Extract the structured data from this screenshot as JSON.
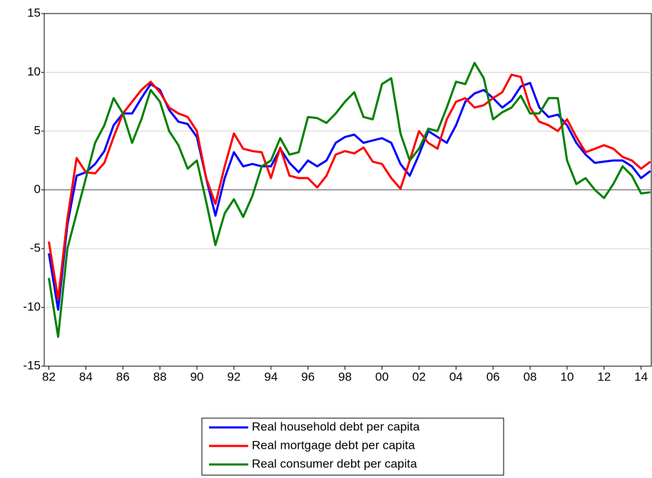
{
  "chart_data": {
    "type": "line",
    "x": [
      1982,
      1982.5,
      1983,
      1983.5,
      1984,
      1984.5,
      1985,
      1985.5,
      1986,
      1986.5,
      1987,
      1987.5,
      1988,
      1988.5,
      1989,
      1989.5,
      1990,
      1990.5,
      1991,
      1991.5,
      1992,
      1992.5,
      1993,
      1993.5,
      1994,
      1994.5,
      1995,
      1995.5,
      1996,
      1996.5,
      1997,
      1997.5,
      1998,
      1998.5,
      1999,
      1999.5,
      2000,
      2000.5,
      2001,
      2001.5,
      2002,
      2002.5,
      2003,
      2003.5,
      2004,
      2004.5,
      2005,
      2005.5,
      2006,
      2006.5,
      2007,
      2007.5,
      2008,
      2008.5,
      2009,
      2009.5,
      2010,
      2010.5,
      2011,
      2011.5,
      2012,
      2012.5,
      2013,
      2013.5,
      2014,
      2014.5
    ],
    "series": [
      {
        "name": "Real household debt per capita",
        "color": "#0000ff",
        "values": [
          -5.4,
          -10.2,
          -3,
          1.2,
          1.5,
          2.2,
          3.3,
          5.5,
          6.5,
          6.5,
          7.8,
          9.0,
          8.5,
          6.8,
          5.8,
          5.6,
          4.5,
          1.0,
          -2.2,
          1.0,
          3.2,
          2.0,
          2.2,
          2.0,
          2.0,
          3.5,
          2.3,
          1.5,
          2.5,
          2.0,
          2.5,
          4.0,
          4.5,
          4.7,
          4.0,
          4.2,
          4.4,
          4.0,
          2.2,
          1.2,
          3.0,
          5.0,
          4.5,
          4.0,
          5.5,
          7.5,
          8.2,
          8.5,
          7.8,
          7.0,
          7.6,
          8.8,
          9.1,
          7.0,
          6.2,
          6.4,
          5.5,
          4.0,
          3.0,
          2.3,
          2.4,
          2.5,
          2.5,
          2.0,
          1.0,
          1.6
        ]
      },
      {
        "name": "Real mortgage debt per capita",
        "color": "#ff0000",
        "values": [
          -4.4,
          -9.3,
          -2.5,
          2.7,
          1.5,
          1.4,
          2.3,
          4.5,
          6.5,
          7.5,
          8.5,
          9.2,
          8.3,
          7.0,
          6.5,
          6.2,
          5.0,
          1.0,
          -1.2,
          2.0,
          4.8,
          3.5,
          3.3,
          3.2,
          1.0,
          3.6,
          1.2,
          1.0,
          1.0,
          0.2,
          1.2,
          3.0,
          3.3,
          3.1,
          3.6,
          2.4,
          2.2,
          1.0,
          0.1,
          2.5,
          5.0,
          4.0,
          3.5,
          6.0,
          7.5,
          7.8,
          7.0,
          7.2,
          7.8,
          8.3,
          9.8,
          9.6,
          7.0,
          5.8,
          5.5,
          5.0,
          6.0,
          4.5,
          3.2,
          3.5,
          3.8,
          3.5,
          2.8,
          2.5,
          1.8,
          2.4
        ]
      },
      {
        "name": "Real consumer debt per capita",
        "color": "#008000",
        "values": [
          -7.5,
          -12.5,
          -5,
          -2,
          1,
          4,
          5.5,
          7.8,
          6.5,
          4.0,
          6.0,
          8.5,
          7.5,
          5.0,
          3.8,
          1.8,
          2.5,
          -1.0,
          -4.7,
          -2.0,
          -0.8,
          -2.3,
          -0.5,
          2.0,
          2.5,
          4.4,
          3.0,
          3.2,
          6.2,
          6.1,
          5.7,
          6.5,
          7.5,
          8.3,
          6.2,
          6.0,
          9.0,
          9.5,
          4.8,
          2.5,
          3.5,
          5.2,
          5.0,
          7.0,
          9.2,
          9.0,
          10.8,
          9.5,
          6.0,
          6.6,
          7.0,
          8.0,
          6.5,
          6.5,
          7.8,
          7.8,
          2.5,
          0.5,
          1.0,
          0,
          -0.7,
          0.5,
          2.0,
          1.2,
          -0.3,
          -0.2
        ]
      }
    ],
    "xlim": [
      1981.75,
      2014.55
    ],
    "xticks": [
      {
        "value": 1982,
        "label": "82"
      },
      {
        "value": 1984,
        "label": "84"
      },
      {
        "value": 1986,
        "label": "86"
      },
      {
        "value": 1988,
        "label": "88"
      },
      {
        "value": 1990,
        "label": "90"
      },
      {
        "value": 1992,
        "label": "92"
      },
      {
        "value": 1994,
        "label": "94"
      },
      {
        "value": 1996,
        "label": "96"
      },
      {
        "value": 1998,
        "label": "98"
      },
      {
        "value": 2000,
        "label": "00"
      },
      {
        "value": 2002,
        "label": "02"
      },
      {
        "value": 2004,
        "label": "04"
      },
      {
        "value": 2006,
        "label": "06"
      },
      {
        "value": 2008,
        "label": "08"
      },
      {
        "value": 2010,
        "label": "10"
      },
      {
        "value": 2012,
        "label": "12"
      },
      {
        "value": 2014,
        "label": "14"
      }
    ],
    "ylim": [
      -15,
      15
    ],
    "yticks": [
      -15,
      -10,
      -5,
      0,
      5,
      10,
      15
    ],
    "grid": true,
    "legend": "below"
  }
}
